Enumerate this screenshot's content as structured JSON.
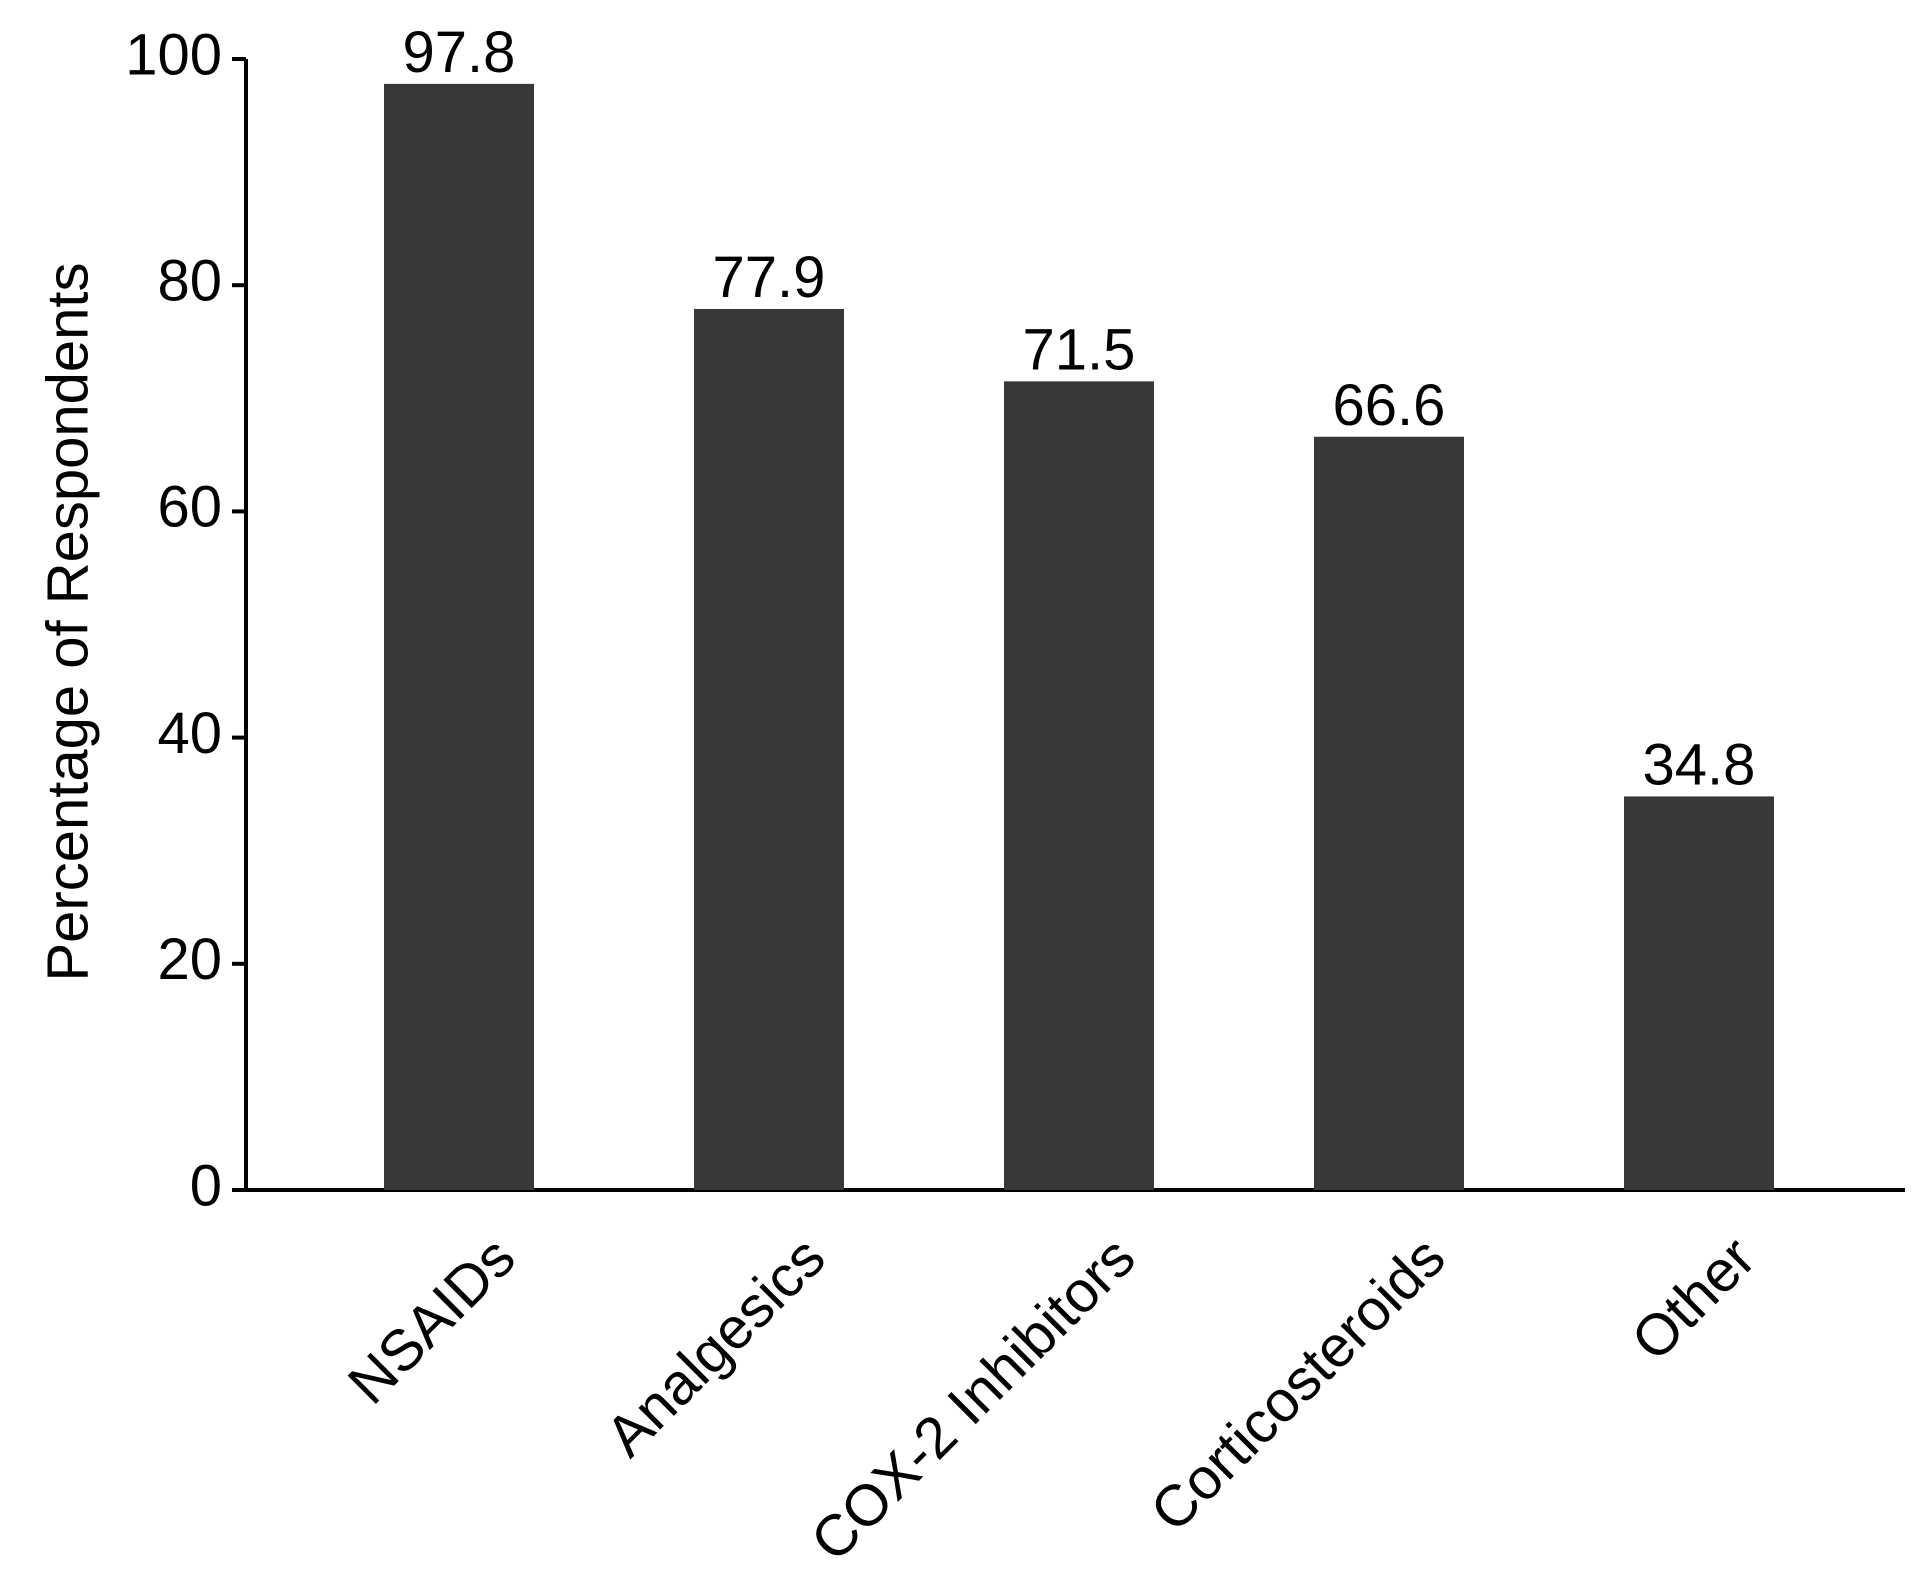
{
  "chart_data": {
    "type": "bar",
    "y_label": "Percentage of Respondents",
    "categories": [
      "NSAIDs",
      "Analgesics",
      "COX-2 Inhibitors",
      "Corticosteroids",
      "Other"
    ],
    "values": [
      97.8,
      77.9,
      71.5,
      66.6,
      34.8
    ],
    "color": "#383838",
    "ylim": [
      0,
      100
    ],
    "yticks": [
      0,
      20,
      40,
      60,
      80,
      100
    ]
  }
}
